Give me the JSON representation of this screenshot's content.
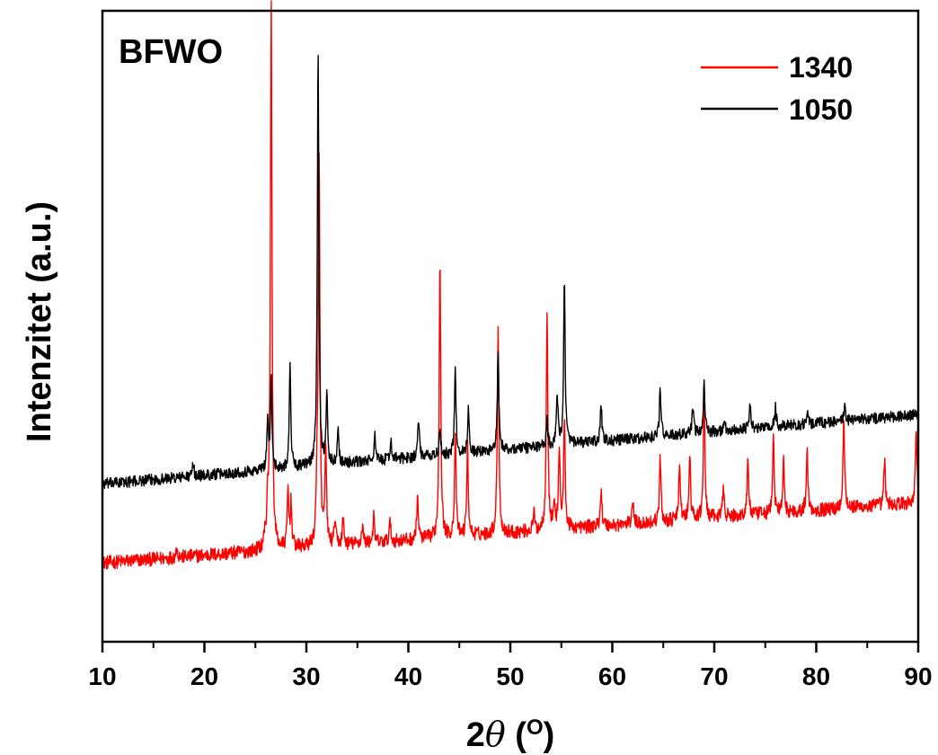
{
  "chart_data": {
    "type": "line",
    "annotation": "BFWO",
    "xlabel": {
      "prefix": "2",
      "symbol": "θ",
      "open": " (",
      "unit": "O",
      "close": ")"
    },
    "ylabel": "Intenzitet (a.u.)",
    "xlim": [
      10,
      90
    ],
    "ylim": [
      0,
      100
    ],
    "xticks": [
      10,
      20,
      30,
      40,
      50,
      60,
      70,
      80,
      90
    ],
    "yticks_shown": false,
    "legend_position": "top-right",
    "series": [
      {
        "name": "1340",
        "color": "#ff0000",
        "baseline_start": 12.5,
        "baseline_end": 22,
        "noise": 1.1,
        "peaks": [
          [
            17.3,
            1.5
          ],
          [
            25.9,
            1.5
          ],
          [
            26.2,
            7
          ],
          [
            26.55,
            87
          ],
          [
            28.2,
            9
          ],
          [
            28.5,
            7
          ],
          [
            31.05,
            8
          ],
          [
            31.25,
            61
          ],
          [
            31.9,
            15
          ],
          [
            32.8,
            4
          ],
          [
            33.6,
            4
          ],
          [
            35.5,
            3
          ],
          [
            36.6,
            4
          ],
          [
            38.2,
            3
          ],
          [
            40.9,
            7
          ],
          [
            43.1,
            45
          ],
          [
            44.6,
            16
          ],
          [
            45.8,
            14
          ],
          [
            48.8,
            33
          ],
          [
            52.3,
            3
          ],
          [
            53.6,
            35
          ],
          [
            54.3,
            4
          ],
          [
            54.8,
            13
          ],
          [
            55.3,
            17
          ],
          [
            58.9,
            6
          ],
          [
            62.0,
            4
          ],
          [
            64.7,
            10
          ],
          [
            66.6,
            9
          ],
          [
            67.6,
            10
          ],
          [
            69.0,
            20
          ],
          [
            70.9,
            5
          ],
          [
            73.3,
            9
          ],
          [
            75.8,
            12
          ],
          [
            76.8,
            8
          ],
          [
            79.1,
            10
          ],
          [
            82.7,
            15
          ],
          [
            86.7,
            7
          ],
          [
            89.8,
            12
          ]
        ]
      },
      {
        "name": "1050",
        "color": "#000000",
        "baseline_start": 25,
        "baseline_end": 36,
        "noise": 0.9,
        "peaks": [
          [
            18.9,
            2
          ],
          [
            26.2,
            8
          ],
          [
            26.55,
            14
          ],
          [
            28.4,
            16
          ],
          [
            31.15,
            66
          ],
          [
            32.0,
            11
          ],
          [
            33.1,
            6
          ],
          [
            36.7,
            4
          ],
          [
            38.3,
            3
          ],
          [
            41.0,
            6
          ],
          [
            43.1,
            4
          ],
          [
            44.6,
            13
          ],
          [
            45.9,
            7
          ],
          [
            48.8,
            15
          ],
          [
            53.6,
            4
          ],
          [
            54.6,
            8
          ],
          [
            55.3,
            26
          ],
          [
            58.9,
            6
          ],
          [
            64.7,
            8
          ],
          [
            67.9,
            4
          ],
          [
            69.0,
            8
          ],
          [
            71.0,
            2
          ],
          [
            73.5,
            4
          ],
          [
            76.0,
            3
          ],
          [
            79.1,
            2
          ],
          [
            82.8,
            2
          ]
        ]
      }
    ]
  }
}
